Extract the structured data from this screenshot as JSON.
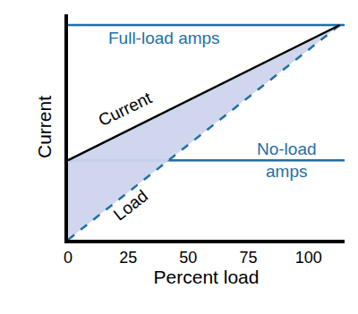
{
  "chart_data": {
    "type": "line",
    "xlabel": "Percent load",
    "ylabel": "Current",
    "xlim": [
      0,
      115
    ],
    "xticks": [
      0,
      25,
      50,
      75,
      100
    ],
    "ylim": [
      0,
      105
    ],
    "tick_labels": "x",
    "grid": false,
    "series": [
      {
        "name": "Full-load amps",
        "color": "#1f6fa6",
        "x": [
          0,
          115
        ],
        "values": [
          100,
          100
        ]
      },
      {
        "name": "No-load amps",
        "color": "#1f6fa6",
        "x": [
          0,
          115
        ],
        "values": [
          37,
          37
        ]
      },
      {
        "name": "Load",
        "color": "#1f6fa6",
        "line_style": "dashed",
        "x": [
          0,
          113
        ],
        "values": [
          0,
          100
        ]
      },
      {
        "name": "Current",
        "color": "#000000",
        "type": "area",
        "x": [
          0,
          113
        ],
        "values": [
          37,
          100
        ]
      }
    ]
  }
}
